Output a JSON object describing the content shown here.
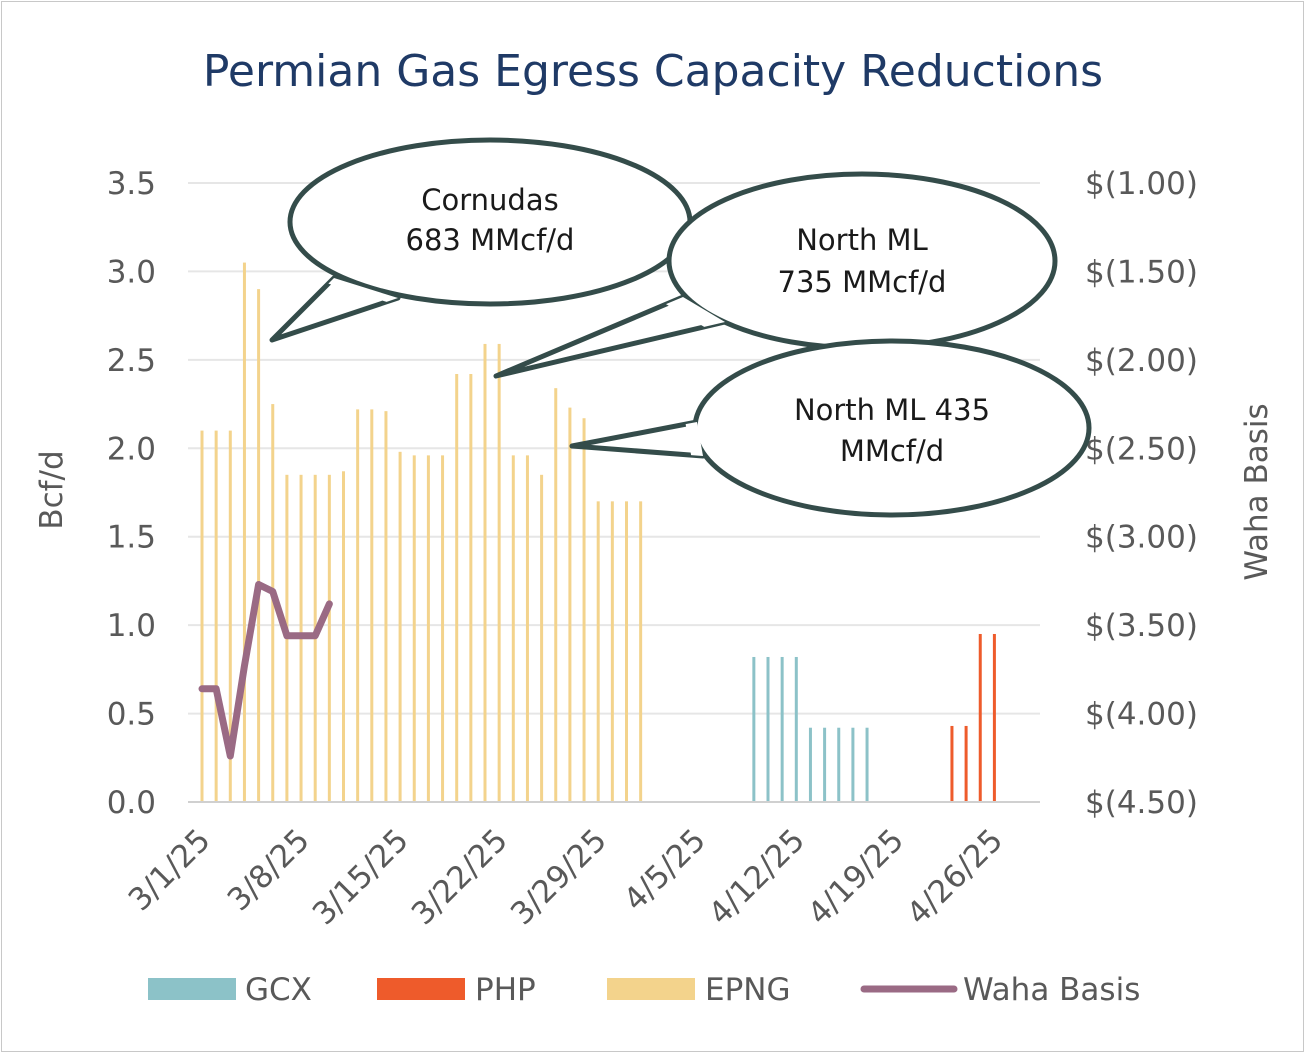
{
  "chart_data": {
    "type": "bar",
    "title": "Permian Gas Egress Capacity Reductions",
    "ylabel": "Bcf/d",
    "y2label": "Waha Basis",
    "ylim": [
      0,
      3.5
    ],
    "y2lim": [
      -4.5,
      -1.0
    ],
    "y_ticks": [
      "0.0",
      "0.5",
      "1.0",
      "1.5",
      "2.0",
      "2.5",
      "3.0",
      "3.5"
    ],
    "y2_ticks": [
      "$(4.50)",
      "$(4.00)",
      "$(3.50)",
      "$(3.00)",
      "$(2.50)",
      "$(2.00)",
      "$(1.50)",
      "$(1.00)"
    ],
    "x_ticks": [
      "3/1/25",
      "3/8/25",
      "3/15/25",
      "3/22/25",
      "3/29/25",
      "4/5/25",
      "4/12/25",
      "4/19/25",
      "4/26/25"
    ],
    "x_start": "2025-03-01",
    "x_end": "2025-04-30",
    "grid": true,
    "legend_position": "bottom",
    "series": [
      {
        "name": "GCX",
        "type": "bar",
        "color": "#8cc2c8",
        "points": [
          [
            "2025-04-09",
            0.82
          ],
          [
            "2025-04-10",
            0.82
          ],
          [
            "2025-04-11",
            0.82
          ],
          [
            "2025-04-12",
            0.82
          ],
          [
            "2025-04-13",
            0.42
          ],
          [
            "2025-04-14",
            0.42
          ],
          [
            "2025-04-15",
            0.42
          ],
          [
            "2025-04-16",
            0.42
          ],
          [
            "2025-04-17",
            0.42
          ]
        ]
      },
      {
        "name": "PHP",
        "type": "bar",
        "color": "#ee5b2b",
        "points": [
          [
            "2025-04-23",
            0.43
          ],
          [
            "2025-04-24",
            0.43
          ],
          [
            "2025-04-25",
            0.95
          ],
          [
            "2025-04-26",
            0.95
          ]
        ]
      },
      {
        "name": "EPNG",
        "type": "bar",
        "color": "#f3d38c",
        "points": [
          [
            "2025-03-01",
            2.1
          ],
          [
            "2025-03-02",
            2.1
          ],
          [
            "2025-03-03",
            2.1
          ],
          [
            "2025-03-04",
            3.05
          ],
          [
            "2025-03-05",
            2.9
          ],
          [
            "2025-03-06",
            2.25
          ],
          [
            "2025-03-07",
            1.85
          ],
          [
            "2025-03-08",
            1.85
          ],
          [
            "2025-03-09",
            1.85
          ],
          [
            "2025-03-10",
            1.85
          ],
          [
            "2025-03-11",
            1.87
          ],
          [
            "2025-03-12",
            2.22
          ],
          [
            "2025-03-13",
            2.22
          ],
          [
            "2025-03-14",
            2.21
          ],
          [
            "2025-03-15",
            1.98
          ],
          [
            "2025-03-16",
            1.96
          ],
          [
            "2025-03-17",
            1.96
          ],
          [
            "2025-03-18",
            1.96
          ],
          [
            "2025-03-19",
            2.42
          ],
          [
            "2025-03-20",
            2.42
          ],
          [
            "2025-03-21",
            2.59
          ],
          [
            "2025-03-22",
            2.59
          ],
          [
            "2025-03-23",
            1.96
          ],
          [
            "2025-03-24",
            1.96
          ],
          [
            "2025-03-25",
            1.85
          ],
          [
            "2025-03-26",
            2.34
          ],
          [
            "2025-03-27",
            2.23
          ],
          [
            "2025-03-28",
            2.17
          ],
          [
            "2025-03-29",
            1.7
          ],
          [
            "2025-03-30",
            1.7
          ],
          [
            "2025-03-31",
            1.7
          ],
          [
            "2025-04-01",
            1.7
          ]
        ]
      },
      {
        "name": "Waha Basis",
        "type": "line",
        "axis": "right",
        "color": "#9a6a84",
        "points": [
          [
            "2025-03-01",
            -3.86
          ],
          [
            "2025-03-02",
            -3.86
          ],
          [
            "2025-03-03",
            -4.24
          ],
          [
            "2025-03-04",
            -3.73
          ],
          [
            "2025-03-05",
            -3.27
          ],
          [
            "2025-03-06",
            -3.31
          ],
          [
            "2025-03-07",
            -3.56
          ],
          [
            "2025-03-08",
            -3.56
          ],
          [
            "2025-03-09",
            -3.56
          ],
          [
            "2025-03-10",
            -3.38
          ]
        ]
      }
    ],
    "annotations": [
      {
        "lines": [
          "Cornudas",
          "683 MMcf/d"
        ]
      },
      {
        "lines": [
          "North ML",
          "735 MMcf/d"
        ]
      },
      {
        "lines": [
          "North ML 435",
          "MMcf/d"
        ]
      }
    ]
  }
}
